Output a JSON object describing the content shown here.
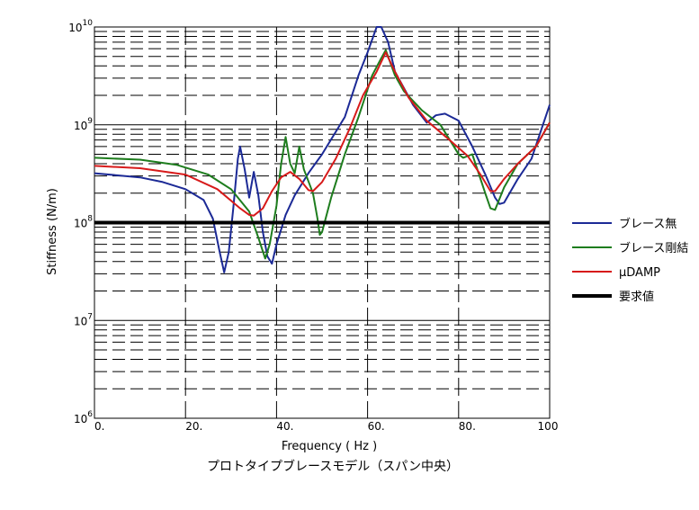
{
  "chart_data": {
    "type": "line",
    "title": "プロトタイプブレースモデル（スパン中央）",
    "xlabel": "Frequency ( Hz )",
    "ylabel": "Stiffness (N/m)",
    "xlim": [
      0,
      100
    ],
    "ylim_log10": [
      6,
      10
    ],
    "y_scale": "log",
    "grid": true,
    "legend_position": "right",
    "x_ticks": [
      {
        "value": 0,
        "label": "0."
      },
      {
        "value": 20,
        "label": "20."
      },
      {
        "value": 40,
        "label": "40."
      },
      {
        "value": 60,
        "label": "60."
      },
      {
        "value": 80,
        "label": "80."
      },
      {
        "value": 100,
        "label": "100"
      }
    ],
    "y_ticks": [
      {
        "exp": 6,
        "base": "10",
        "sup": "6"
      },
      {
        "exp": 7,
        "base": "10",
        "sup": "7"
      },
      {
        "exp": 8,
        "base": "10",
        "sup": "8"
      },
      {
        "exp": 9,
        "base": "10",
        "sup": "9"
      },
      {
        "exp": 10,
        "base": "10",
        "sup": "10"
      }
    ],
    "series": [
      {
        "name": "ブレース無",
        "color": "#1c2a96",
        "points": [
          [
            0,
            320000000.0
          ],
          [
            10,
            290000000.0
          ],
          [
            15,
            260000000.0
          ],
          [
            20,
            220000000.0
          ],
          [
            24,
            170000000.0
          ],
          [
            26,
            110000000.0
          ],
          [
            27.5,
            50000000.0
          ],
          [
            28.5,
            31000000.0
          ],
          [
            29.5,
            50000000.0
          ],
          [
            30.5,
            140000000.0
          ],
          [
            31.5,
            450000000.0
          ],
          [
            32,
            600000000.0
          ],
          [
            33,
            350000000.0
          ],
          [
            34,
            180000000.0
          ],
          [
            35,
            330000000.0
          ],
          [
            36,
            190000000.0
          ],
          [
            37,
            80000000.0
          ],
          [
            38,
            45000000.0
          ],
          [
            39,
            38000000.0
          ],
          [
            40,
            60000000.0
          ],
          [
            42,
            120000000.0
          ],
          [
            44,
            190000000.0
          ],
          [
            47,
            320000000.0
          ],
          [
            50,
            500000000.0
          ],
          [
            55,
            1200000000.0
          ],
          [
            58,
            3200000000.0
          ],
          [
            60,
            5500000000.0
          ],
          [
            62,
            10000000000.0
          ],
          [
            63,
            10000000000.0
          ],
          [
            64.5,
            7000000000.0
          ],
          [
            66,
            3500000000.0
          ],
          [
            70,
            1600000000.0
          ],
          [
            73,
            1050000000.0
          ],
          [
            75,
            1250000000.0
          ],
          [
            77,
            1300000000.0
          ],
          [
            80,
            1100000000.0
          ],
          [
            83,
            600000000.0
          ],
          [
            86,
            300000000.0
          ],
          [
            88,
            180000000.0
          ],
          [
            89,
            155000000.0
          ],
          [
            90,
            160000000.0
          ],
          [
            93,
            280000000.0
          ],
          [
            96,
            450000000.0
          ],
          [
            100,
            1600000000.0
          ]
        ]
      },
      {
        "name": "ブレース剛結",
        "color": "#1e7d1e",
        "points": [
          [
            0,
            460000000.0
          ],
          [
            10,
            440000000.0
          ],
          [
            18,
            390000000.0
          ],
          [
            25,
            310000000.0
          ],
          [
            30,
            220000000.0
          ],
          [
            34,
            130000000.0
          ],
          [
            36,
            70000000.0
          ],
          [
            37.5,
            43000000.0
          ],
          [
            38.5,
            60000000.0
          ],
          [
            40,
            150000000.0
          ],
          [
            41,
            400000000.0
          ],
          [
            42,
            750000000.0
          ],
          [
            43,
            400000000.0
          ],
          [
            44,
            320000000.0
          ],
          [
            45,
            600000000.0
          ],
          [
            46,
            350000000.0
          ],
          [
            48,
            200000000.0
          ],
          [
            49,
            110000000.0
          ],
          [
            49.5,
            75000000.0
          ],
          [
            50,
            80000000.0
          ],
          [
            52,
            180000000.0
          ],
          [
            55,
            500000000.0
          ],
          [
            58,
            1200000000.0
          ],
          [
            61,
            3200000000.0
          ],
          [
            63,
            4800000000.0
          ],
          [
            64,
            5800000000.0
          ],
          [
            66,
            3200000000.0
          ],
          [
            68,
            2200000000.0
          ],
          [
            72,
            1400000000.0
          ],
          [
            76,
            1000000000.0
          ],
          [
            80,
            500000000.0
          ],
          [
            81,
            460000000.0
          ],
          [
            83,
            500000000.0
          ],
          [
            86,
            190000000.0
          ],
          [
            87,
            140000000.0
          ],
          [
            88,
            135000000.0
          ],
          [
            90,
            230000000.0
          ],
          [
            93,
            400000000.0
          ],
          [
            97,
            600000000.0
          ],
          [
            100,
            1050000000.0
          ]
        ]
      },
      {
        "name": "μDAMP",
        "color": "#d71a1a",
        "points": [
          [
            0,
            380000000.0
          ],
          [
            10,
            360000000.0
          ],
          [
            20,
            310000000.0
          ],
          [
            27,
            220000000.0
          ],
          [
            32,
            140000000.0
          ],
          [
            34,
            120000000.0
          ],
          [
            35,
            118000000.0
          ],
          [
            37,
            140000000.0
          ],
          [
            39,
            210000000.0
          ],
          [
            41,
            290000000.0
          ],
          [
            43,
            330000000.0
          ],
          [
            45,
            280000000.0
          ],
          [
            47,
            215000000.0
          ],
          [
            48,
            210000000.0
          ],
          [
            50,
            260000000.0
          ],
          [
            53,
            450000000.0
          ],
          [
            56,
            900000000.0
          ],
          [
            59,
            2000000000.0
          ],
          [
            62,
            3500000000.0
          ],
          [
            64,
            5500000000.0
          ],
          [
            66,
            3500000000.0
          ],
          [
            69,
            1900000000.0
          ],
          [
            73,
            1100000000.0
          ],
          [
            78,
            700000000.0
          ],
          [
            82,
            480000000.0
          ],
          [
            85,
            300000000.0
          ],
          [
            87,
            210000000.0
          ],
          [
            88,
            210000000.0
          ],
          [
            90,
            280000000.0
          ],
          [
            93,
            400000000.0
          ],
          [
            97,
            600000000.0
          ],
          [
            100,
            1050000000.0
          ]
        ]
      },
      {
        "name": "要求値",
        "color": "#000000",
        "points": [
          [
            0,
            100000000.0
          ],
          [
            100,
            100000000.0
          ]
        ]
      }
    ]
  }
}
